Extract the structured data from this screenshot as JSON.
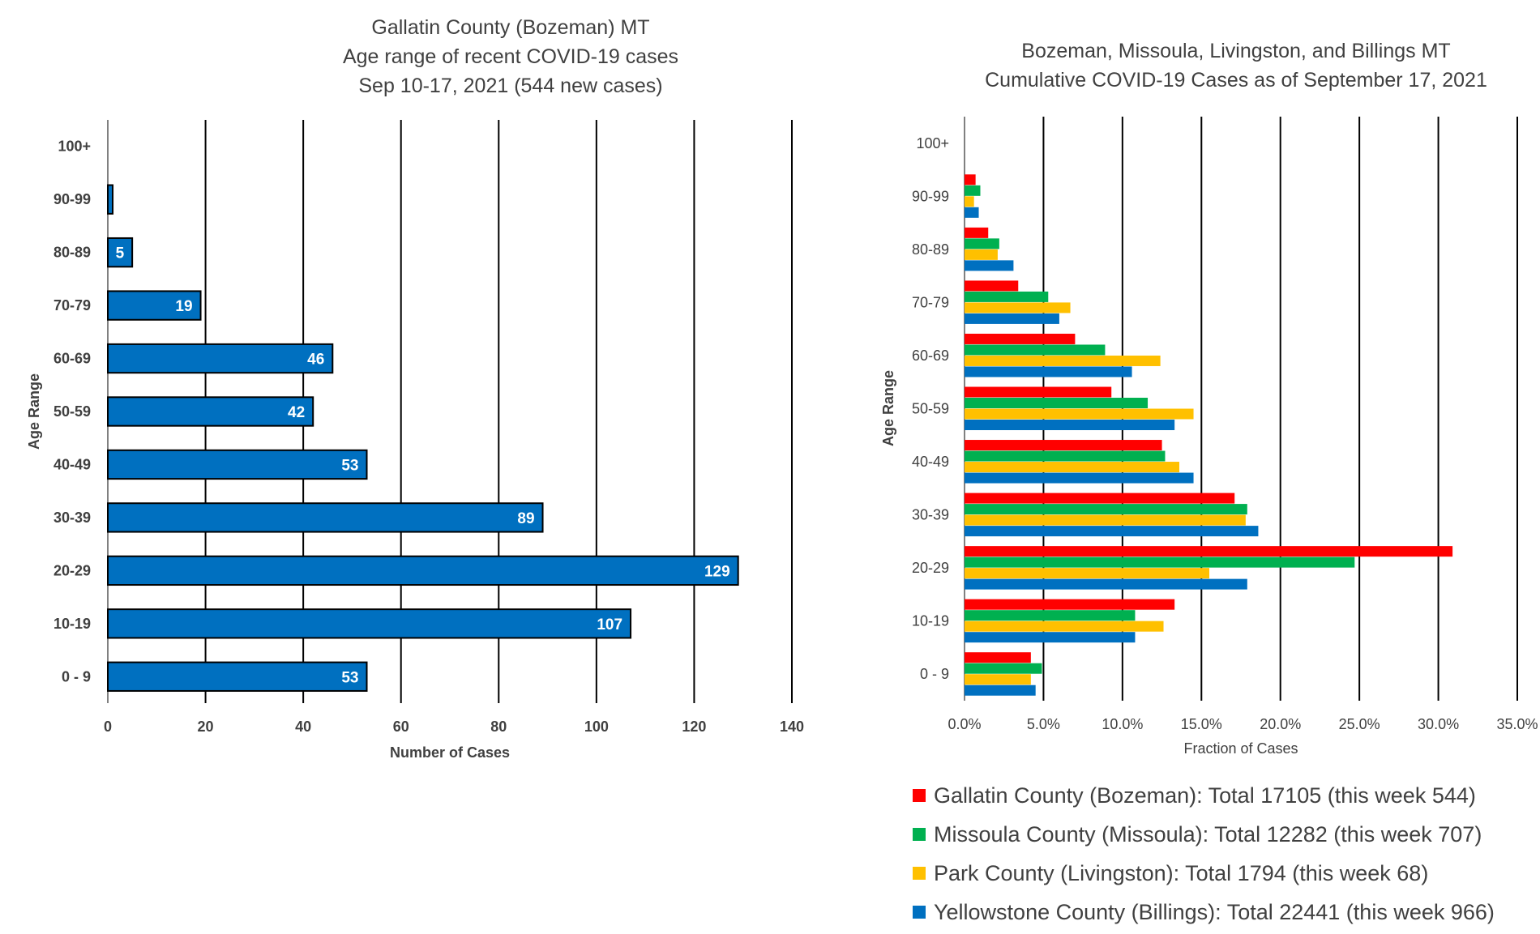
{
  "chart_data": [
    {
      "type": "bar",
      "orientation": "horizontal",
      "title": [
        "Gallatin County (Bozeman) MT",
        "Age range of recent COVID-19 cases",
        "Sep 10-17, 2021 (544 new cases)"
      ],
      "xlabel": "Number of Cases",
      "ylabel": "Age Range",
      "categories": [
        "0 - 9",
        "10-19",
        "20-29",
        "30-39",
        "40-49",
        "50-59",
        "60-69",
        "70-79",
        "80-89",
        "90-99",
        "100+"
      ],
      "values": [
        53,
        107,
        129,
        89,
        53,
        42,
        46,
        19,
        5,
        1,
        0
      ],
      "data_labels": [
        "53",
        "107",
        "129",
        "89",
        "53",
        "42",
        "46",
        "19",
        "5",
        "",
        ""
      ],
      "xlim": [
        0,
        140
      ],
      "xticks": [
        "0",
        "20",
        "40",
        "60",
        "80",
        "100",
        "120",
        "140"
      ],
      "grid": "vertical",
      "bar_color": "#0070C0"
    },
    {
      "type": "bar",
      "orientation": "horizontal",
      "title": [
        "Bozeman, Missoula, Livingston, and Billings MT",
        "Cumulative COVID-19 Cases as of September 17, 2021"
      ],
      "xlabel": "Fraction of Cases",
      "ylabel": "Age Range",
      "categories": [
        "0 - 9",
        "10-19",
        "20-29",
        "30-39",
        "40-49",
        "50-59",
        "60-69",
        "70-79",
        "80-89",
        "90-99",
        "100+"
      ],
      "xlim": [
        0,
        35
      ],
      "xticks": [
        "0.0%",
        "5.0%",
        "10.0%",
        "15.0%",
        "20.0%",
        "25.0%",
        "30.0%",
        "35.0%"
      ],
      "grid": "vertical",
      "legend_position": "bottom",
      "series": [
        {
          "name": "Gallatin County (Bozeman): Total 17105 (this week 544)",
          "color": "#FF0000",
          "values": [
            4.2,
            13.3,
            30.9,
            17.1,
            12.5,
            9.3,
            7.0,
            3.4,
            1.5,
            0.7,
            0.0
          ]
        },
        {
          "name": "Missoula County (Missoula): Total 12282 (this week 707)",
          "color": "#00B050",
          "values": [
            4.9,
            10.8,
            24.7,
            17.9,
            12.7,
            11.6,
            8.9,
            5.3,
            2.2,
            1.0,
            0.0
          ]
        },
        {
          "name": "Park County (Livingston): Total 1794 (this week 68)",
          "color": "#FFC000",
          "values": [
            4.2,
            12.6,
            15.5,
            17.8,
            13.6,
            14.5,
            12.4,
            6.7,
            2.1,
            0.6,
            0.0
          ]
        },
        {
          "name": "Yellowstone County (Billings): Total 22441 (this week 966)",
          "color": "#0070C0",
          "values": [
            4.5,
            10.8,
            17.9,
            18.6,
            14.5,
            13.3,
            10.6,
            6.0,
            3.1,
            0.9,
            0.0
          ]
        }
      ]
    }
  ]
}
